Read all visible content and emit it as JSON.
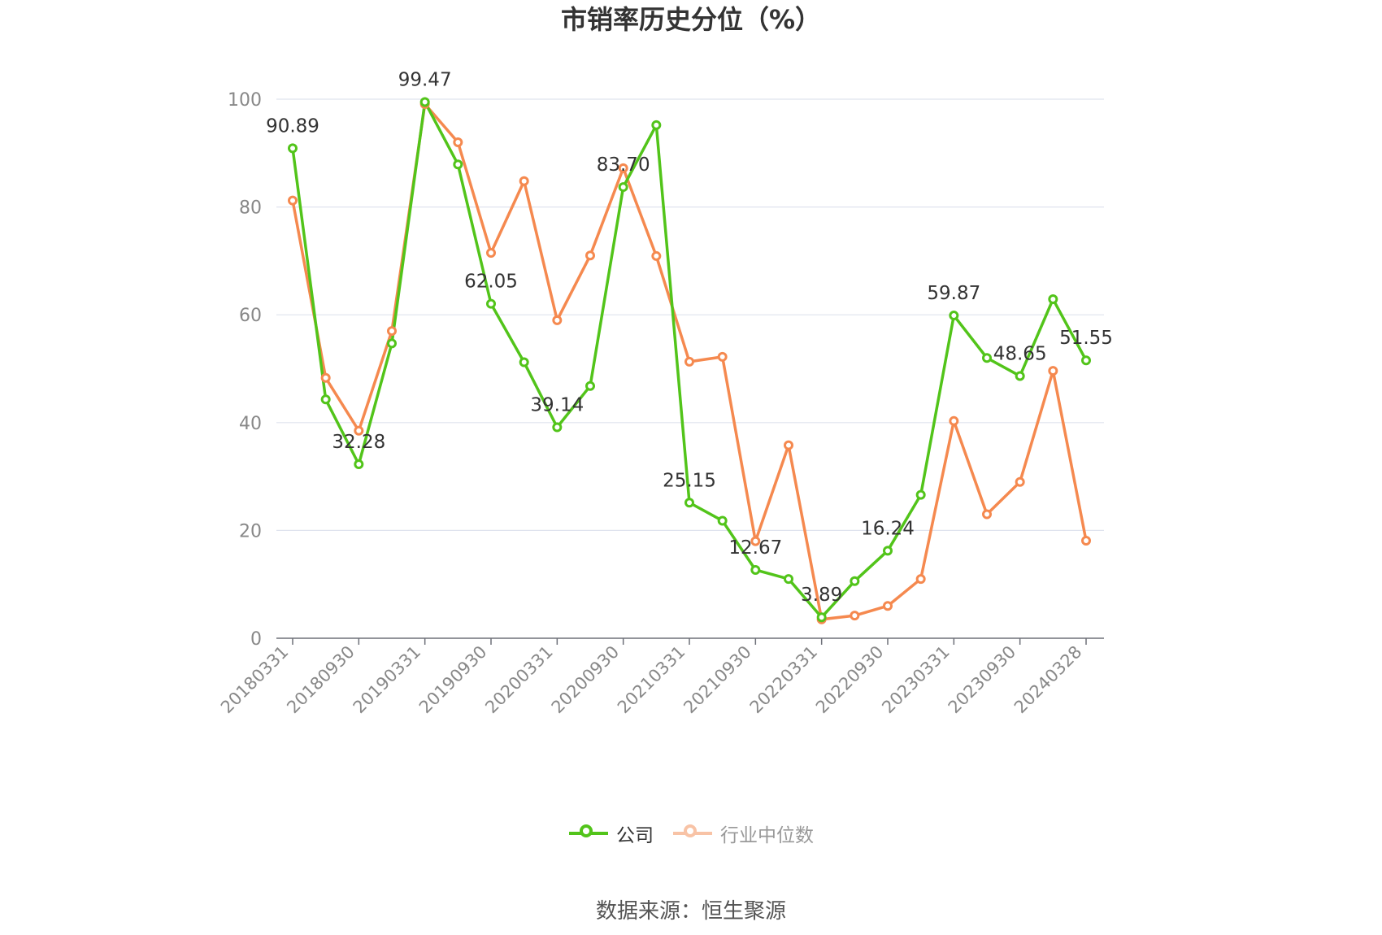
{
  "chart_data": {
    "type": "line",
    "title": "市销率历史分位（%）",
    "xlabel": "",
    "ylabel": "",
    "ylim": [
      0,
      100
    ],
    "yticks": [
      0,
      20,
      40,
      60,
      80,
      100
    ],
    "x": [
      "20180331",
      "20180630",
      "20180930",
      "20181231",
      "20190331",
      "20190630",
      "20190930",
      "20191231",
      "20200331",
      "20200630",
      "20200930",
      "20201231",
      "20210331",
      "20210630",
      "20210930",
      "20211231",
      "20220331",
      "20220630",
      "20220930",
      "20221231",
      "20230331",
      "20230630",
      "20230930",
      "20231231",
      "20240328"
    ],
    "xtick_labels": [
      "20180331",
      "20180930",
      "20190331",
      "20190930",
      "20200331",
      "20200930",
      "20210331",
      "20210930",
      "20220331",
      "20220930",
      "20230331",
      "20230930",
      "20240328"
    ],
    "grid": true,
    "legend_position": "bottom",
    "series": [
      {
        "name": "公司",
        "color": "#52c41a",
        "values": [
          90.89,
          44.3,
          32.28,
          54.7,
          99.47,
          87.9,
          62.05,
          51.2,
          39.14,
          46.8,
          83.7,
          95.2,
          25.15,
          21.8,
          12.67,
          11.0,
          3.89,
          10.6,
          16.24,
          26.6,
          59.87,
          52.0,
          48.65,
          62.9,
          51.55
        ]
      },
      {
        "name": "行业中位数",
        "color": "#f5894f",
        "values": [
          81.2,
          48.3,
          38.5,
          57.0,
          99.1,
          92.0,
          71.5,
          84.8,
          59.0,
          71.0,
          87.2,
          70.9,
          51.3,
          52.2,
          18.0,
          35.8,
          3.5,
          4.2,
          6.0,
          11.0,
          40.3,
          23.0,
          29.0,
          49.6,
          18.1
        ]
      }
    ],
    "annotations": [
      {
        "index": 0,
        "text": "90.89"
      },
      {
        "index": 2,
        "text": "32.28"
      },
      {
        "index": 4,
        "text": "99.47"
      },
      {
        "index": 6,
        "text": "62.05"
      },
      {
        "index": 8,
        "text": "39.14"
      },
      {
        "index": 10,
        "text": "83.70"
      },
      {
        "index": 12,
        "text": "25.15"
      },
      {
        "index": 14,
        "text": "12.67"
      },
      {
        "index": 16,
        "text": "3.89"
      },
      {
        "index": 18,
        "text": "16.24"
      },
      {
        "index": 20,
        "text": "59.87"
      },
      {
        "index": 22,
        "text": "48.65"
      },
      {
        "index": 24,
        "text": "51.55"
      }
    ]
  },
  "legend": {
    "items": [
      {
        "label": "公司",
        "color": "#52c41a",
        "active": true
      },
      {
        "label": "行业中位数",
        "color": "#f5894f",
        "active": false
      }
    ]
  },
  "footer": {
    "source": "数据来源：恒生聚源"
  }
}
